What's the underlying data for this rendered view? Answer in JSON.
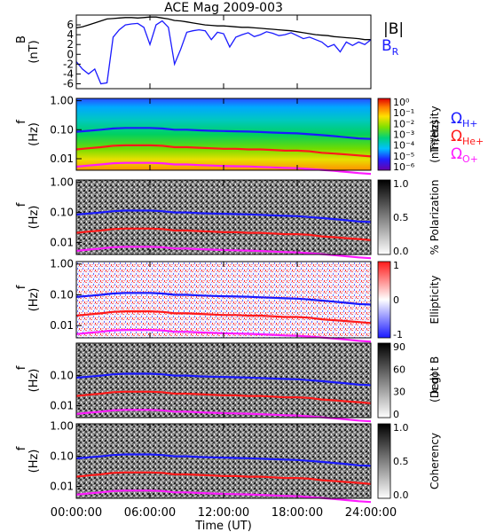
{
  "title": "ACE Mag 2009-003",
  "xaxis": {
    "label": "Time (UT)",
    "ticks": [
      "00:00:00",
      "06:00:00",
      "12:00:00",
      "18:00:00",
      "24:00:00"
    ],
    "range_hours": [
      0,
      24
    ]
  },
  "colors": {
    "B": "#000000",
    "BR": "#1a1aff",
    "H": "#1a1aff",
    "He": "#ff1a1a",
    "O": "#ff1aff"
  },
  "chart_data": [
    {
      "type": "line",
      "panel": "B-field",
      "ylabel": "B",
      "yunit": "(nT)",
      "ylim": [
        -7,
        8
      ],
      "yticks": [
        "6",
        "4",
        "2",
        "0",
        "-2",
        "-4",
        "-6"
      ],
      "legend": [
        "|B|",
        "B"
      ],
      "legend_sub": "R",
      "x_hours": [
        0,
        0.5,
        1,
        1.5,
        2,
        2.5,
        3,
        3.5,
        4,
        4.5,
        5,
        5.5,
        6,
        6.5,
        7,
        7.5,
        8,
        8.5,
        9,
        9.5,
        10,
        10.5,
        11,
        11.5,
        12,
        12.5,
        13,
        13.5,
        14,
        14.5,
        15,
        15.5,
        16,
        16.5,
        17,
        17.5,
        18,
        18.5,
        19,
        19.5,
        20,
        20.5,
        21,
        21.5,
        22,
        22.5,
        23,
        23.5,
        24
      ],
      "series": [
        {
          "name": "|B|",
          "values": [
            5.4,
            5.6,
            6.0,
            6.4,
            6.8,
            7.2,
            7.3,
            7.4,
            7.5,
            7.5,
            7.4,
            7.5,
            7.6,
            7.6,
            7.4,
            7.2,
            6.9,
            6.8,
            6.6,
            6.4,
            6.2,
            6.0,
            5.9,
            5.8,
            5.8,
            5.7,
            5.6,
            5.5,
            5.5,
            5.4,
            5.3,
            5.2,
            5.1,
            5.0,
            4.9,
            4.8,
            4.6,
            4.4,
            4.2,
            4.0,
            3.9,
            3.8,
            3.6,
            3.5,
            3.4,
            3.3,
            3.2,
            3.0,
            3.0
          ]
        },
        {
          "name": "B",
          "values": [
            -1.5,
            -3.0,
            -4.0,
            -3.0,
            -6.0,
            -5.8,
            3.5,
            5.0,
            6.0,
            6.2,
            6.3,
            5.5,
            2.0,
            6.0,
            6.8,
            5.5,
            -2.0,
            1.0,
            4.5,
            4.8,
            5.0,
            4.8,
            3.0,
            4.5,
            4.2,
            1.5,
            3.5,
            4.0,
            4.4,
            3.6,
            4.0,
            4.6,
            4.3,
            3.8,
            4.0,
            4.4,
            3.8,
            3.2,
            3.5,
            3.0,
            2.5,
            1.5,
            2.0,
            0.5,
            2.5,
            1.8,
            2.5,
            2.0,
            3.0
          ]
        }
      ]
    },
    {
      "type": "heatmap",
      "panel": "intensity",
      "ylabel": "f",
      "yunit": "(Hz)",
      "ylog": true,
      "ylim": [
        0.004,
        1.2
      ],
      "yticks": [
        "1.00",
        "0.10",
        "0.01"
      ],
      "colorbar": {
        "label": "Intensity",
        "unit": "(nT²/Hz)",
        "ticks": [
          "10⁰",
          "10⁻¹",
          "10⁻²",
          "10⁻³",
          "10⁻⁴",
          "10⁻⁵",
          "10⁻⁶"
        ]
      },
      "overlays": [
        "H",
        "He",
        "O"
      ]
    },
    {
      "type": "heatmap",
      "panel": "polarization",
      "ylabel": "f",
      "yunit": "(Hz)",
      "ylog": true,
      "yticks": [
        "1.00",
        "0.10",
        "0.01"
      ],
      "colorbar": {
        "label": "% Polarization",
        "ticks": [
          "1.0",
          "0.5",
          "0.0"
        ]
      },
      "overlays": [
        "H",
        "He",
        "O"
      ]
    },
    {
      "type": "heatmap",
      "panel": "ellipticity",
      "ylabel": "f",
      "yunit": "(Hz)",
      "ylog": true,
      "yticks": [
        "1.00",
        "0.10",
        "0.01"
      ],
      "colorbar": {
        "label": "Ellipticity",
        "ticks": [
          "1",
          "0",
          "-1"
        ]
      },
      "overlays": [
        "H",
        "He",
        "O"
      ]
    },
    {
      "type": "heatmap",
      "panel": "kdotb",
      "ylabel": "f",
      "yunit": "(Hz)",
      "ylog": true,
      "yticks": [
        "0.10",
        "0.01"
      ],
      "colorbar": {
        "label": "k dot B",
        "unit": "(Deg)",
        "ticks": [
          "90",
          "60",
          "30",
          "0"
        ]
      },
      "overlays": [
        "H",
        "He",
        "O"
      ]
    },
    {
      "type": "heatmap",
      "panel": "coherency",
      "ylabel": "f",
      "yunit": "(Hz)",
      "ylog": true,
      "yticks": [
        "1.00",
        "0.10",
        "0.01"
      ],
      "colorbar": {
        "label": "Coherency",
        "ticks": [
          "1.0",
          "0.5",
          "0.0"
        ]
      },
      "overlays": [
        "H",
        "He",
        "O"
      ]
    }
  ],
  "gyrofrequency": {
    "legend": [
      {
        "key": "H",
        "symbol": "Ω",
        "sub": "H+"
      },
      {
        "key": "He",
        "symbol": "Ω",
        "sub": "He+"
      },
      {
        "key": "O",
        "symbol": "Ω",
        "sub": "O+"
      }
    ],
    "x_hours": [
      0,
      1,
      2,
      3,
      4,
      5,
      6,
      7,
      8,
      9,
      10,
      11,
      12,
      13,
      14,
      15,
      16,
      17,
      18,
      19,
      20,
      21,
      22,
      23,
      24
    ],
    "H": [
      0.085,
      0.092,
      0.1,
      0.11,
      0.115,
      0.115,
      0.115,
      0.11,
      0.1,
      0.1,
      0.095,
      0.092,
      0.09,
      0.088,
      0.086,
      0.083,
      0.08,
      0.077,
      0.075,
      0.07,
      0.065,
      0.06,
      0.055,
      0.05,
      0.048
    ],
    "He": [
      0.021,
      0.023,
      0.025,
      0.028,
      0.029,
      0.029,
      0.029,
      0.028,
      0.025,
      0.025,
      0.024,
      0.023,
      0.022,
      0.022,
      0.021,
      0.021,
      0.02,
      0.019,
      0.019,
      0.018,
      0.016,
      0.015,
      0.014,
      0.013,
      0.012
    ],
    "O": [
      0.0053,
      0.0058,
      0.0063,
      0.007,
      0.0072,
      0.0072,
      0.0072,
      0.007,
      0.0063,
      0.0063,
      0.006,
      0.0058,
      0.0056,
      0.0055,
      0.0054,
      0.0052,
      0.005,
      0.0048,
      0.0047,
      0.0044,
      0.0041,
      0.0038,
      0.0035,
      0.0032,
      0.003
    ]
  }
}
